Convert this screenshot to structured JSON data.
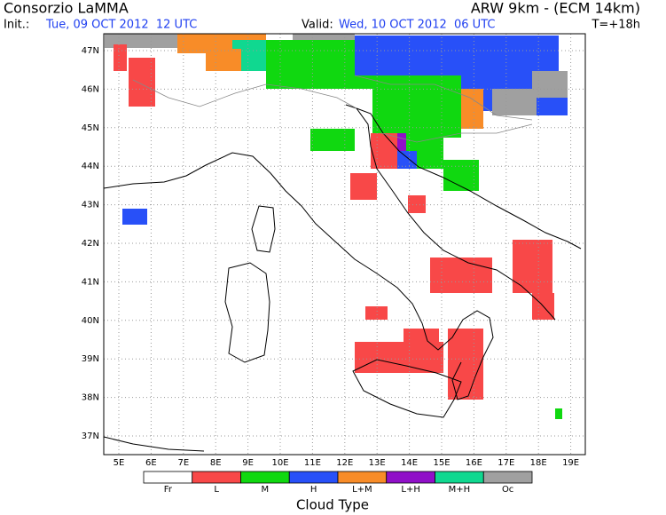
{
  "header": {
    "org": "Consorzio LaMMA",
    "model": "ARW 9km - (ECM 14km)",
    "init_label": "Init.:",
    "init_time": "Tue, 09 OCT 2012  12 UTC",
    "valid_label": "Valid:",
    "valid_time": "Wed, 10 OCT 2012  06 UTC",
    "lead": "T=+18h"
  },
  "map": {
    "lat_labels": [
      "47N",
      "46N",
      "45N",
      "44N",
      "43N",
      "42N",
      "41N",
      "40N",
      "39N",
      "38N",
      "37N"
    ],
    "lon_labels": [
      "5E",
      "6E",
      "7E",
      "8E",
      "9E",
      "10E",
      "11E",
      "12E",
      "13E",
      "14E",
      "15E",
      "16E",
      "17E",
      "18E",
      "19E"
    ]
  },
  "legend": {
    "title": "Cloud Type",
    "items": [
      {
        "label": "Fr",
        "color": "#ffffff"
      },
      {
        "label": "L",
        "color": "#f84848"
      },
      {
        "label": "M",
        "color": "#10d810"
      },
      {
        "label": "H",
        "color": "#2850f8"
      },
      {
        "label": "L+M",
        "color": "#f88c28"
      },
      {
        "label": "L+H",
        "color": "#9010c8"
      },
      {
        "label": "M+H",
        "color": "#10d890"
      },
      {
        "label": "Oc",
        "color": "#a0a0a0"
      }
    ]
  }
}
